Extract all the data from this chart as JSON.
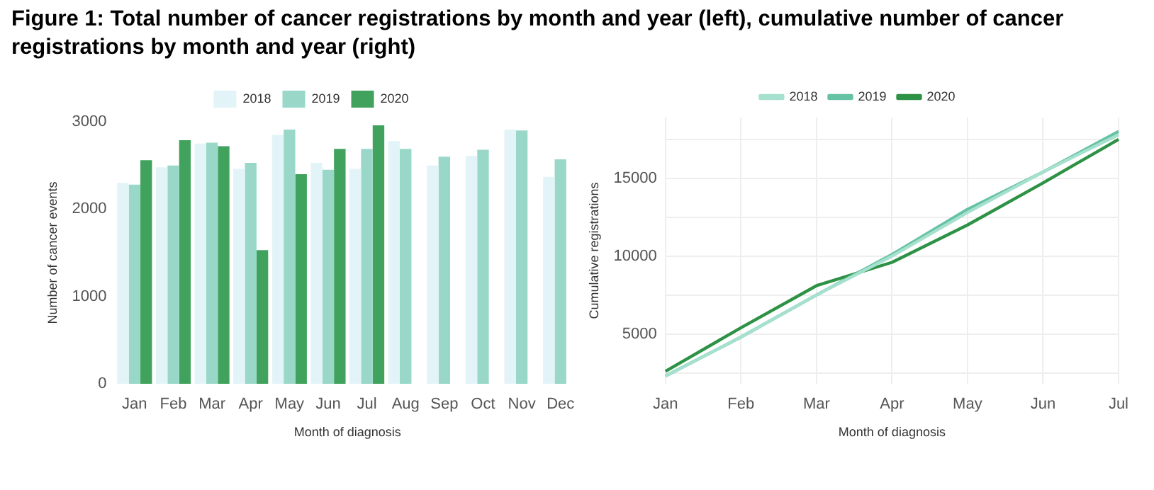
{
  "chart_data": [
    {
      "type": "bar",
      "title": "Figure 1: Total number of cancer registrations by month and year (left), cumulative number of cancer registrations by month and year (right)",
      "xlabel": "Month of diagnosis",
      "ylabel": "Number of cancer events",
      "categories": [
        "Jan",
        "Feb",
        "Mar",
        "Apr",
        "May",
        "Jun",
        "Jul",
        "Aug",
        "Sep",
        "Oct",
        "Nov",
        "Dec"
      ],
      "series": [
        {
          "name": "2018",
          "color": "#e3f4f8",
          "values": [
            2300,
            2480,
            2750,
            2460,
            2850,
            2530,
            2460,
            2780,
            2500,
            2610,
            2910,
            2370
          ]
        },
        {
          "name": "2019",
          "color": "#99d8c9",
          "values": [
            2280,
            2500,
            2760,
            2530,
            2910,
            2450,
            2690,
            2690,
            2600,
            2680,
            2900,
            2570
          ]
        },
        {
          "name": "2020",
          "color": "#41a25d",
          "values": [
            2560,
            2790,
            2720,
            1530,
            2400,
            2690,
            2960,
            null,
            null,
            null,
            null,
            null
          ]
        }
      ],
      "ylim": [
        0,
        3000
      ],
      "yticks": [
        0,
        1000,
        2000,
        3000
      ],
      "grid": false,
      "legend": "top"
    },
    {
      "type": "line",
      "xlabel": "Month of diagnosis",
      "ylabel": "Cumulative registrations",
      "categories": [
        "Jan",
        "Feb",
        "Mar",
        "Apr",
        "May",
        "Jun",
        "Jul"
      ],
      "series": [
        {
          "name": "2018",
          "color": "#a6e0cf",
          "values": [
            2300,
            4800,
            7500,
            10000,
            12800,
            15400,
            17800
          ]
        },
        {
          "name": "2019",
          "color": "#66c2a4",
          "values": [
            2300,
            4800,
            7500,
            10100,
            13000,
            15400,
            18000
          ]
        },
        {
          "name": "2020",
          "color": "#2e9246",
          "values": [
            2600,
            5400,
            8100,
            9600,
            12000,
            14700,
            17500
          ]
        }
      ],
      "ylim": [
        1800,
        18900
      ],
      "yticks": [
        {
          "value": 2500,
          "label": null
        },
        5000,
        {
          "value": 7500,
          "label": null
        },
        10000,
        {
          "value": 12500,
          "label": null
        },
        15000,
        {
          "value": 17500,
          "label": null
        }
      ],
      "grid": true,
      "legend": "top",
      "line_style": "solid"
    }
  ]
}
